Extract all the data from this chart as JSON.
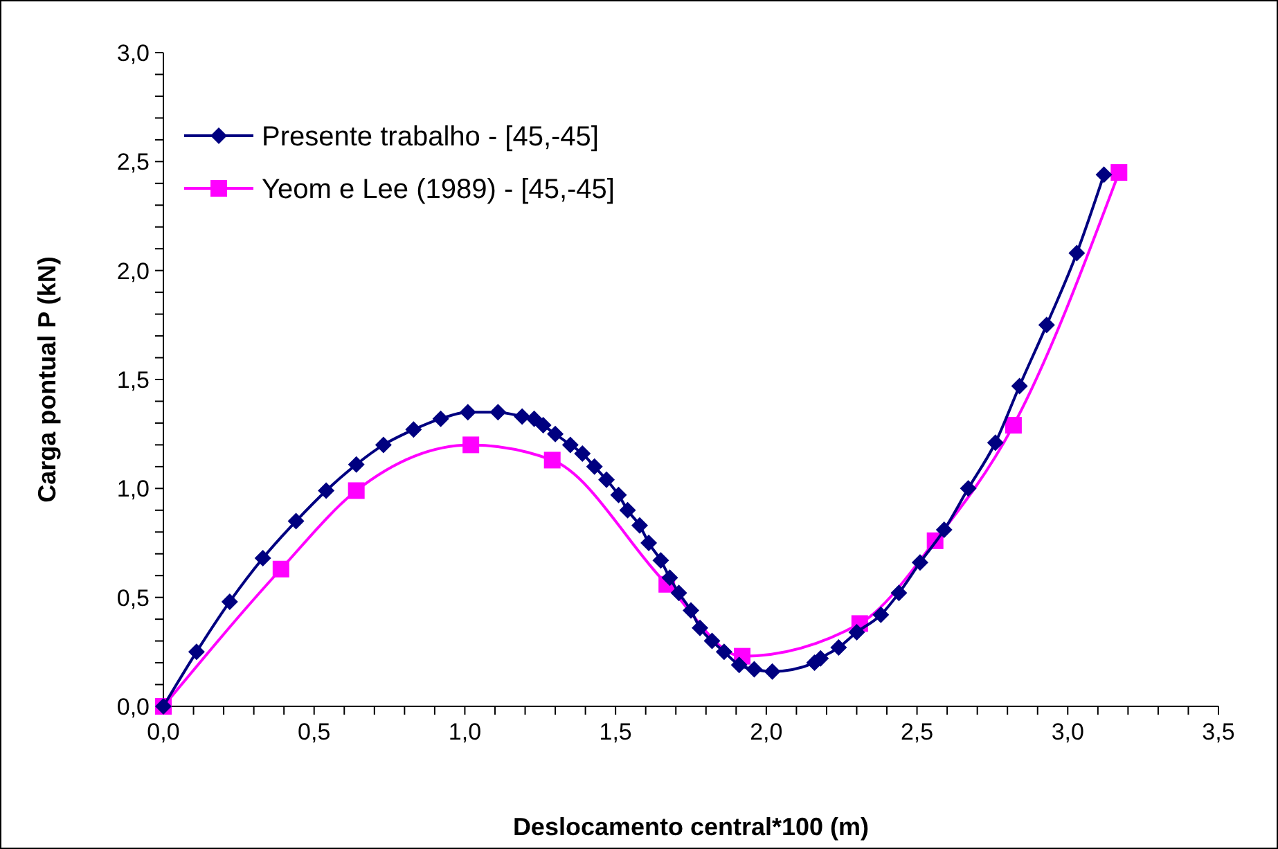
{
  "chart_data": {
    "type": "line",
    "xlabel": "Deslocamento central*100 (m)",
    "ylabel": "Carga pontual P (kN)",
    "xlim": [
      0,
      3.5
    ],
    "ylim": [
      0,
      3.0
    ],
    "xticks": [
      {
        "value": 0,
        "label": "0,0"
      },
      {
        "value": 0.1,
        "label": null
      },
      {
        "value": 0.2,
        "label": null
      },
      {
        "value": 0.3,
        "label": null
      },
      {
        "value": 0.4,
        "label": null
      },
      {
        "value": 0.5,
        "label": "0,5"
      },
      {
        "value": 0.6,
        "label": null
      },
      {
        "value": 0.7,
        "label": null
      },
      {
        "value": 0.8,
        "label": null
      },
      {
        "value": 0.9,
        "label": null
      },
      {
        "value": 1,
        "label": "1,0"
      },
      {
        "value": 1.1,
        "label": null
      },
      {
        "value": 1.2,
        "label": null
      },
      {
        "value": 1.3,
        "label": null
      },
      {
        "value": 1.4,
        "label": null
      },
      {
        "value": 1.5,
        "label": "1,5"
      },
      {
        "value": 1.6,
        "label": null
      },
      {
        "value": 1.7,
        "label": null
      },
      {
        "value": 1.8,
        "label": null
      },
      {
        "value": 1.9,
        "label": null
      },
      {
        "value": 2,
        "label": "2,0"
      },
      {
        "value": 2.1,
        "label": null
      },
      {
        "value": 2.2,
        "label": null
      },
      {
        "value": 2.3,
        "label": null
      },
      {
        "value": 2.4,
        "label": null
      },
      {
        "value": 2.5,
        "label": "2,5"
      },
      {
        "value": 2.6,
        "label": null
      },
      {
        "value": 2.7,
        "label": null
      },
      {
        "value": 2.8,
        "label": null
      },
      {
        "value": 2.9,
        "label": null
      },
      {
        "value": 3,
        "label": "3,0"
      },
      {
        "value": 3.1,
        "label": null
      },
      {
        "value": 3.2,
        "label": null
      },
      {
        "value": 3.3,
        "label": null
      },
      {
        "value": 3.4,
        "label": null
      },
      {
        "value": 3.5,
        "label": "3,5"
      }
    ],
    "yticks": [
      {
        "value": 0,
        "label": "0,0"
      },
      {
        "value": 0.1,
        "label": null
      },
      {
        "value": 0.2,
        "label": null
      },
      {
        "value": 0.3,
        "label": null
      },
      {
        "value": 0.4,
        "label": null
      },
      {
        "value": 0.5,
        "label": "0,5"
      },
      {
        "value": 0.6,
        "label": null
      },
      {
        "value": 0.7,
        "label": null
      },
      {
        "value": 0.8,
        "label": null
      },
      {
        "value": 0.9,
        "label": null
      },
      {
        "value": 1,
        "label": "1,0"
      },
      {
        "value": 1.1,
        "label": null
      },
      {
        "value": 1.2,
        "label": null
      },
      {
        "value": 1.3,
        "label": null
      },
      {
        "value": 1.4,
        "label": null
      },
      {
        "value": 1.5,
        "label": "1,5"
      },
      {
        "value": 1.6,
        "label": null
      },
      {
        "value": 1.7,
        "label": null
      },
      {
        "value": 1.8,
        "label": null
      },
      {
        "value": 1.9,
        "label": null
      },
      {
        "value": 2,
        "label": "2,0"
      },
      {
        "value": 2.1,
        "label": null
      },
      {
        "value": 2.2,
        "label": null
      },
      {
        "value": 2.3,
        "label": null
      },
      {
        "value": 2.4,
        "label": null
      },
      {
        "value": 2.5,
        "label": "2,5"
      },
      {
        "value": 2.6,
        "label": null
      },
      {
        "value": 2.7,
        "label": null
      },
      {
        "value": 2.8,
        "label": null
      },
      {
        "value": 2.9,
        "label": null
      },
      {
        "value": 3,
        "label": "3,0"
      }
    ],
    "grid": false,
    "legend": "top left",
    "line_style": "solid",
    "series": [
      {
        "name": "Presente trabalho - [45,-45]",
        "color": "#000080",
        "marker": "diamond",
        "x": [
          0,
          0.11,
          0.22,
          0.33,
          0.44,
          0.54,
          0.64,
          0.73,
          0.83,
          0.92,
          1.01,
          1.11,
          1.19,
          1.23,
          1.26,
          1.3,
          1.35,
          1.39,
          1.43,
          1.47,
          1.51,
          1.54,
          1.58,
          1.61,
          1.65,
          1.68,
          1.71,
          1.75,
          1.78,
          1.82,
          1.86,
          1.91,
          1.96,
          2.02,
          2.16,
          2.18,
          2.24,
          2.3,
          2.38,
          2.44,
          2.51,
          2.59,
          2.67,
          2.76,
          2.84,
          2.93,
          3.03,
          3.12
        ],
        "values": [
          0,
          0.25,
          0.48,
          0.68,
          0.85,
          0.99,
          1.11,
          1.2,
          1.27,
          1.32,
          1.35,
          1.35,
          1.33,
          1.32,
          1.29,
          1.25,
          1.2,
          1.16,
          1.1,
          1.04,
          0.97,
          0.9,
          0.83,
          0.75,
          0.67,
          0.59,
          0.52,
          0.44,
          0.36,
          0.3,
          0.25,
          0.19,
          0.17,
          0.16,
          0.2,
          0.22,
          0.27,
          0.34,
          0.42,
          0.52,
          0.66,
          0.81,
          1.0,
          1.21,
          1.47,
          1.75,
          2.08,
          2.44
        ]
      },
      {
        "name": "Yeom e Lee (1989) - [45,-45]",
        "color": "#ff00ff",
        "marker": "square",
        "x": [
          0,
          0.39,
          0.64,
          1.02,
          1.29,
          1.67,
          1.92,
          2.31,
          2.56,
          2.82,
          3.17
        ],
        "values": [
          0,
          0.63,
          0.99,
          1.2,
          1.13,
          0.56,
          0.23,
          0.38,
          0.76,
          1.29,
          2.45
        ]
      }
    ]
  }
}
